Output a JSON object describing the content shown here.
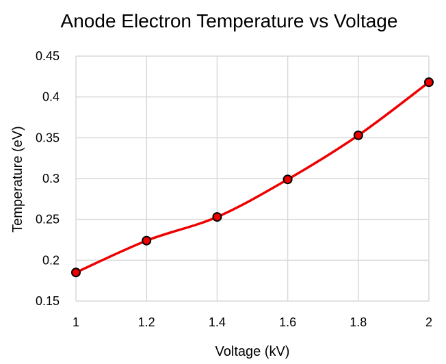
{
  "chart_data": {
    "type": "scatter",
    "title": "Anode Electron Temperature vs Voltage",
    "xlabel": "Voltage (kV)",
    "ylabel": "Temperature (eV)",
    "xlim": [
      1,
      2
    ],
    "ylim": [
      0.15,
      0.45
    ],
    "x_ticks": [
      "1",
      "1.2",
      "1.4",
      "1.6",
      "1.8",
      "2"
    ],
    "y_ticks": [
      "0.45",
      "0.4",
      "0.35",
      "0.3",
      "0.25",
      "0.2",
      "0.15"
    ],
    "grid": true,
    "line_style": "smoothed",
    "series": [
      {
        "x": [
          1.0,
          1.2,
          1.4,
          1.6,
          1.8,
          2.0
        ],
        "y": [
          0.185,
          0.224,
          0.253,
          0.299,
          0.353,
          0.418
        ],
        "color": "#ee0000",
        "marker_color": "#ee0000",
        "marker_edge": "#000000"
      }
    ]
  }
}
